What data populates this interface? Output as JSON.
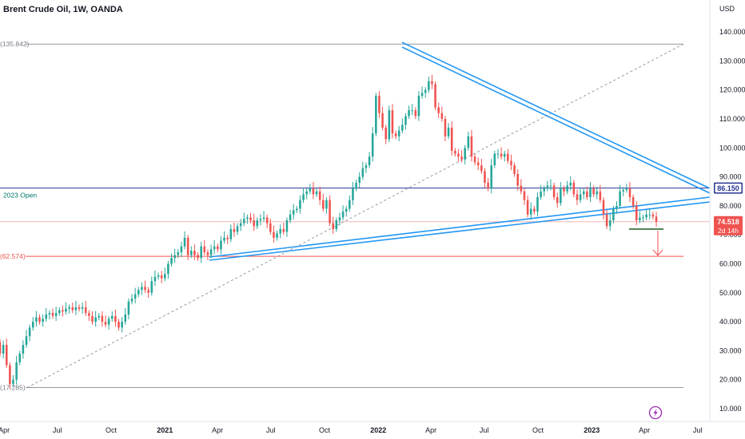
{
  "header": {
    "title": "Brent Crude Oil, 1W, OANDA"
  },
  "colors": {
    "up": "#26a69a",
    "down": "#ef5350",
    "blue": "#2196f3",
    "navy": "#283593"
  },
  "chart_data": {
    "type": "candlestick",
    "title": "Brent Crude Oil, 1W, OANDA",
    "currency": "USD",
    "y_ticks": [
      10,
      20,
      30,
      40,
      50,
      60,
      70,
      80,
      90,
      100,
      110,
      120,
      130,
      140
    ],
    "y_tick_labels": [
      "10.000",
      "20.000",
      "30.000",
      "40.000",
      "50.000",
      "60.000",
      "70.000",
      "80.000",
      "90.000",
      "100.000",
      "110.000",
      "120.000",
      "130.000",
      "140.000"
    ],
    "ylim": [
      5,
      146
    ],
    "x_range": [
      "2020-03-25",
      "2023-07-22"
    ],
    "x_ticks": [
      {
        "label": "Apr",
        "date": "2020-04-01",
        "bold": false
      },
      {
        "label": "Jul",
        "date": "2020-07-01",
        "bold": false
      },
      {
        "label": "Oct",
        "date": "2020-10-01",
        "bold": false
      },
      {
        "label": "2021",
        "date": "2021-01-01",
        "bold": true
      },
      {
        "label": "Apr",
        "date": "2021-04-01",
        "bold": false
      },
      {
        "label": "Jul",
        "date": "2021-07-01",
        "bold": false
      },
      {
        "label": "Oct",
        "date": "2021-10-01",
        "bold": false
      },
      {
        "label": "2022",
        "date": "2022-01-01",
        "bold": true
      },
      {
        "label": "Apr",
        "date": "2022-04-01",
        "bold": false
      },
      {
        "label": "Jul",
        "date": "2022-07-01",
        "bold": false
      },
      {
        "label": "Oct",
        "date": "2022-10-01",
        "bold": false
      },
      {
        "label": "2023",
        "date": "2023-01-01",
        "bold": true
      },
      {
        "label": "Apr",
        "date": "2023-04-01",
        "bold": false
      },
      {
        "label": "Jul",
        "date": "2023-07-01",
        "bold": false
      }
    ],
    "closes": [
      29,
      32,
      25,
      18.5,
      20,
      26,
      29,
      32,
      35,
      38,
      40,
      41.5,
      40,
      41,
      42.5,
      43,
      42,
      43,
      44,
      43.5,
      44.5,
      45,
      44,
      45,
      44.5,
      45,
      43,
      42,
      40,
      41.5,
      42,
      40,
      39,
      41,
      42,
      40,
      38,
      40,
      42.5,
      47,
      48,
      49.5,
      51,
      52,
      51,
      50,
      54,
      55.5,
      56,
      55,
      56.5,
      60,
      62,
      63,
      64,
      66,
      69,
      63,
      64.5,
      63,
      62,
      66,
      64,
      63,
      65,
      66,
      65,
      68,
      69,
      68.5,
      72,
      71,
      73,
      74,
      75.5,
      76,
      75,
      73,
      75,
      75.5,
      76,
      74,
      71,
      69,
      70.5,
      72,
      71,
      75,
      77,
      78.5,
      79,
      82,
      84,
      85,
      86,
      84,
      85,
      82,
      79,
      82,
      74,
      72,
      75,
      76,
      78,
      79,
      82,
      86,
      88,
      90,
      93,
      94,
      97,
      105,
      118,
      112,
      107,
      103,
      113,
      105,
      104,
      106,
      108,
      111,
      113,
      113,
      111,
      118,
      119,
      120,
      123,
      122,
      114,
      112,
      110,
      104,
      107,
      99,
      98,
      97,
      96,
      100,
      104,
      97,
      95,
      94,
      92,
      88,
      86,
      94,
      98,
      98,
      97,
      98,
      95.5,
      94,
      91,
      87,
      85,
      82,
      77,
      79,
      78,
      83,
      85,
      86,
      87,
      87,
      83,
      81,
      86,
      85,
      87,
      88,
      84,
      82,
      84,
      85,
      83,
      86,
      84,
      85,
      82,
      77,
      73,
      75,
      79,
      80,
      85,
      85.5,
      86,
      83,
      80,
      75,
      76,
      76,
      77,
      77,
      76.3,
      74.518
    ],
    "last_price_label": "74.518",
    "countdown_label": "2d 14h",
    "level_86_label": "86.150",
    "level_135_label": "(135.842)",
    "level_62_label": "(62.574)",
    "level_17_label": "(17.285)",
    "open_label": "2023 Open"
  }
}
